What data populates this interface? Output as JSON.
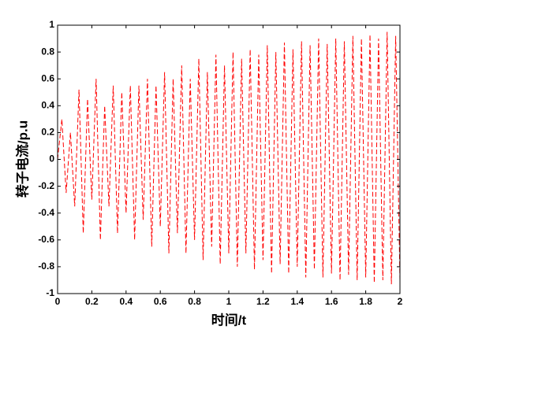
{
  "chart_data": {
    "type": "line",
    "xlabel": "时间/t",
    "ylabel": "转子电流/p.u",
    "xlim": [
      0,
      2
    ],
    "ylim": [
      -1,
      1
    ],
    "xticks": [
      0,
      0.2,
      0.4,
      0.6,
      0.8,
      1,
      1.2,
      1.4,
      1.6,
      1.8,
      2
    ],
    "yticks": [
      -1,
      -0.8,
      -0.6,
      -0.4,
      -0.2,
      0,
      0.2,
      0.4,
      0.6,
      0.8,
      1
    ],
    "grid": false,
    "x": [
      0,
      0.025,
      0.05,
      0.075,
      0.1,
      0.125,
      0.15,
      0.175,
      0.2,
      0.225,
      0.25,
      0.275,
      0.3,
      0.325,
      0.35,
      0.375,
      0.4,
      0.425,
      0.45,
      0.475,
      0.5,
      0.525,
      0.55,
      0.575,
      0.6,
      0.625,
      0.65,
      0.675,
      0.7,
      0.725,
      0.75,
      0.775,
      0.8,
      0.825,
      0.85,
      0.875,
      0.9,
      0.925,
      0.95,
      0.975,
      1,
      1.025,
      1.05,
      1.075,
      1.1,
      1.125,
      1.15,
      1.175,
      1.2,
      1.225,
      1.25,
      1.275,
      1.3,
      1.325,
      1.35,
      1.375,
      1.4,
      1.425,
      1.45,
      1.475,
      1.5,
      1.525,
      1.55,
      1.575,
      1.6,
      1.625,
      1.65,
      1.675,
      1.7,
      1.725,
      1.75,
      1.775,
      1.8,
      1.825,
      1.85,
      1.875,
      1.9,
      1.925,
      1.95,
      1.975,
      2
    ],
    "series": [
      {
        "color": "#ff0000",
        "values": [
          0,
          0.3,
          -0.25,
          0.2,
          -0.35,
          0.52,
          -0.55,
          0.45,
          -0.3,
          0.6,
          -0.6,
          0.4,
          -0.35,
          0.55,
          -0.55,
          0.5,
          -0.4,
          0.55,
          -0.6,
          0.55,
          -0.45,
          0.6,
          -0.65,
          0.55,
          -0.5,
          0.65,
          -0.7,
          0.6,
          -0.55,
          0.7,
          -0.7,
          0.6,
          -0.6,
          0.75,
          -0.75,
          0.65,
          -0.65,
          0.78,
          -0.78,
          0.7,
          -0.7,
          0.8,
          -0.8,
          0.75,
          -0.7,
          0.82,
          -0.82,
          0.78,
          -0.75,
          0.85,
          -0.85,
          0.8,
          -0.78,
          0.87,
          -0.85,
          0.82,
          -0.8,
          0.88,
          -0.88,
          0.85,
          -0.82,
          0.9,
          -0.88,
          0.86,
          -0.85,
          0.9,
          -0.9,
          0.88,
          -0.86,
          0.92,
          -0.9,
          0.9,
          -0.88,
          0.93,
          -0.92,
          0.9,
          -0.9,
          0.95,
          -0.93,
          0.92,
          -0.9
        ]
      }
    ]
  }
}
